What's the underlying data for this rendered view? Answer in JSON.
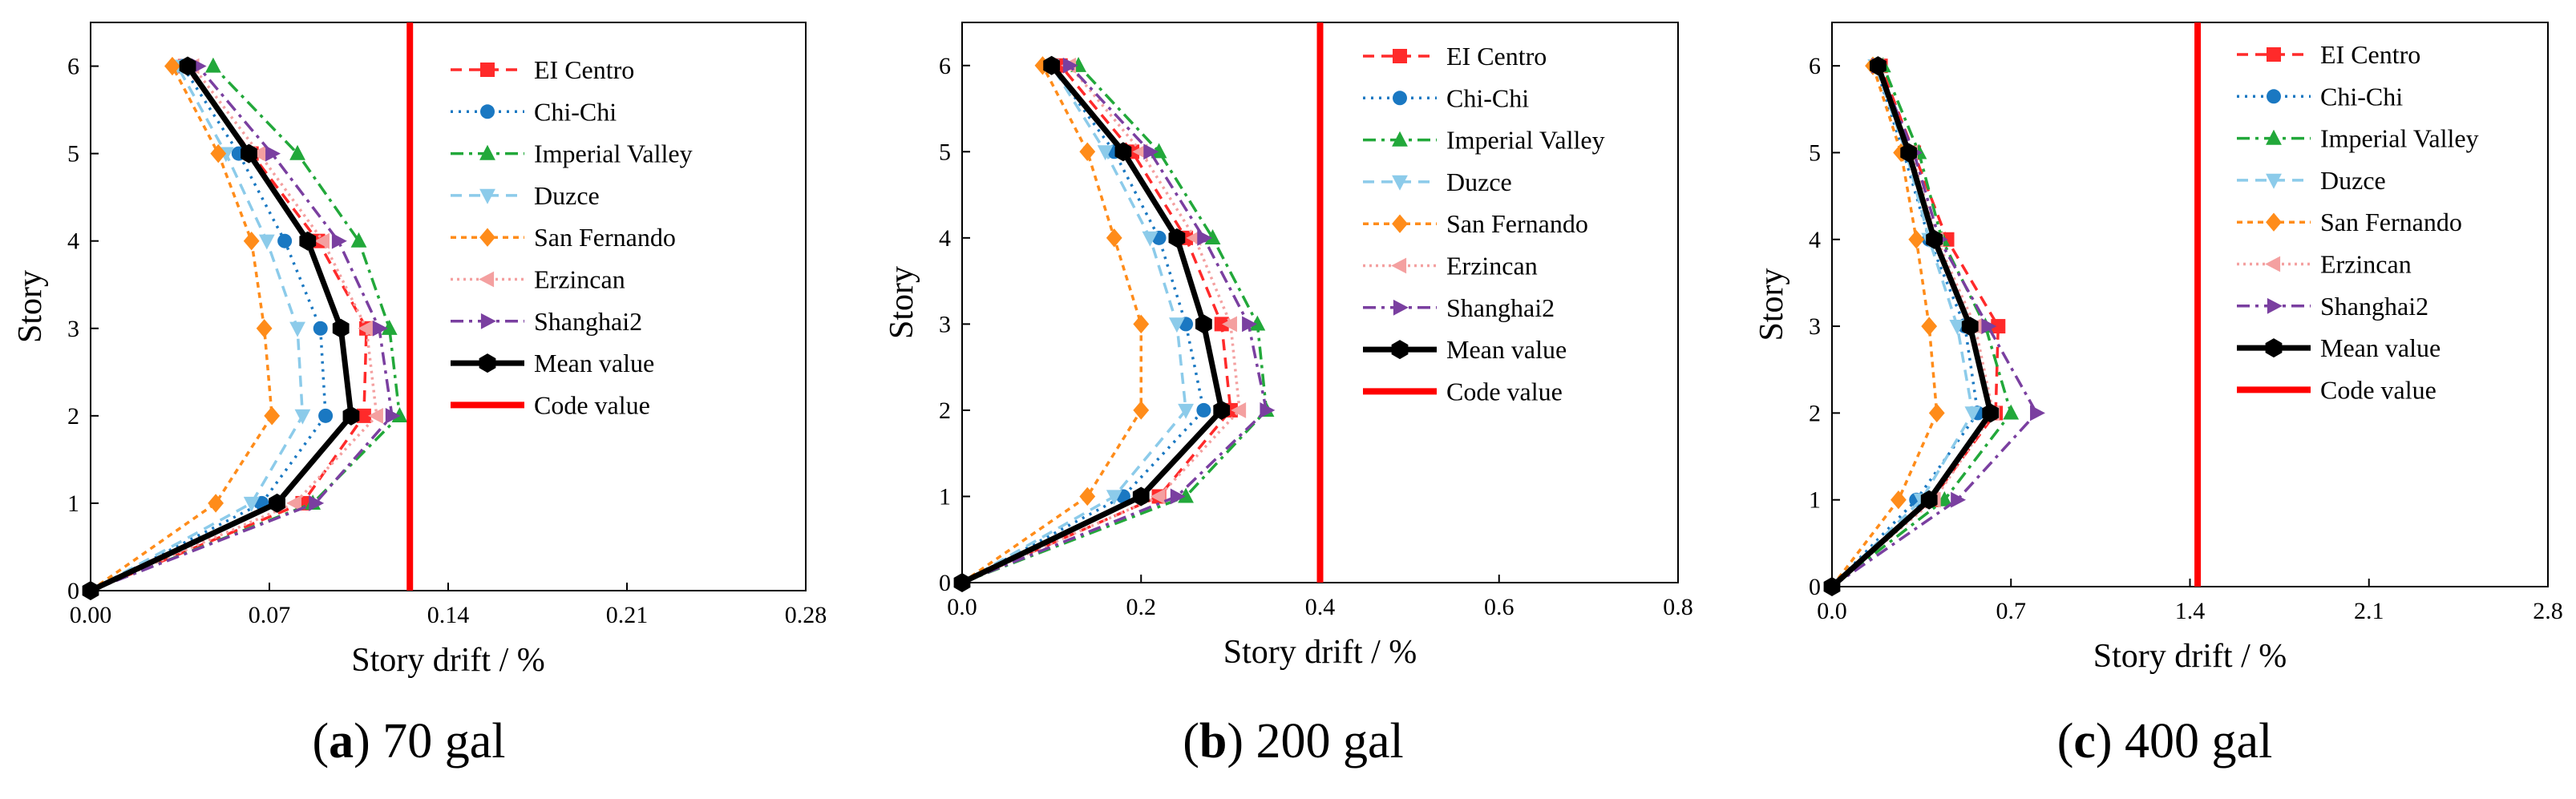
{
  "chart_data": [
    {
      "type": "line",
      "title_letter": "a",
      "title_rest": " 70 gal",
      "xlabel": "Story drift / %",
      "ylabel": "Story",
      "xlim": [
        0,
        0.28
      ],
      "ylim": [
        0,
        6.5
      ],
      "xticks": [
        "0.00",
        "0.07",
        "0.14",
        "0.21",
        "0.28"
      ],
      "yticks": [
        "0",
        "1",
        "2",
        "3",
        "4",
        "5",
        "6"
      ],
      "y": [
        0,
        1,
        2,
        3,
        4,
        5,
        6
      ],
      "series": [
        {
          "name": "EI Centro",
          "values": [
            0,
            0.083,
            0.107,
            0.108,
            0.089,
            0.063,
            0.037
          ]
        },
        {
          "name": "Chi-Chi",
          "values": [
            0,
            0.067,
            0.092,
            0.09,
            0.076,
            0.058,
            0.036
          ]
        },
        {
          "name": "Imperial Valley",
          "values": [
            0,
            0.087,
            0.121,
            0.117,
            0.105,
            0.081,
            0.048
          ]
        },
        {
          "name": "Duzce",
          "values": [
            0,
            0.063,
            0.083,
            0.081,
            0.069,
            0.053,
            0.034
          ]
        },
        {
          "name": "San Fernando",
          "values": [
            0,
            0.049,
            0.071,
            0.068,
            0.063,
            0.05,
            0.032
          ]
        },
        {
          "name": "Erzincan",
          "values": [
            0,
            0.08,
            0.112,
            0.108,
            0.091,
            0.066,
            0.04
          ]
        },
        {
          "name": "Shanghai2",
          "values": [
            0,
            0.088,
            0.118,
            0.113,
            0.097,
            0.071,
            0.042
          ]
        },
        {
          "name": "Mean value",
          "values": [
            0,
            0.073,
            0.102,
            0.098,
            0.085,
            0.062,
            0.038
          ]
        }
      ],
      "code_value": {
        "name": "Code value",
        "value": 0.125
      }
    },
    {
      "type": "line",
      "title_letter": "b",
      "title_rest": " 200 gal",
      "xlabel": "Story drift / %",
      "ylabel": "Story",
      "xlim": [
        0,
        0.8
      ],
      "ylim": [
        0,
        6.5
      ],
      "xticks": [
        "0.0",
        "0.2",
        "0.4",
        "0.6",
        "0.8"
      ],
      "yticks": [
        "0",
        "1",
        "2",
        "3",
        "4",
        "5",
        "6"
      ],
      "y": [
        0,
        1,
        2,
        3,
        4,
        5,
        6
      ],
      "series": [
        {
          "name": "EI Centro",
          "values": [
            0,
            0.22,
            0.3,
            0.29,
            0.25,
            0.19,
            0.11
          ]
        },
        {
          "name": "Chi-Chi",
          "values": [
            0,
            0.18,
            0.27,
            0.25,
            0.22,
            0.17,
            0.1
          ]
        },
        {
          "name": "Imperial Valley",
          "values": [
            0,
            0.25,
            0.34,
            0.33,
            0.28,
            0.22,
            0.13
          ]
        },
        {
          "name": "Duzce",
          "values": [
            0,
            0.17,
            0.25,
            0.24,
            0.21,
            0.16,
            0.1
          ]
        },
        {
          "name": "San Fernando",
          "values": [
            0,
            0.14,
            0.2,
            0.2,
            0.17,
            0.14,
            0.09
          ]
        },
        {
          "name": "Erzincan",
          "values": [
            0,
            0.22,
            0.31,
            0.3,
            0.26,
            0.2,
            0.12
          ]
        },
        {
          "name": "Shanghai2",
          "values": [
            0,
            0.24,
            0.34,
            0.32,
            0.27,
            0.21,
            0.12
          ]
        },
        {
          "name": "Mean value",
          "values": [
            0,
            0.2,
            0.29,
            0.27,
            0.24,
            0.18,
            0.1
          ]
        }
      ],
      "code_value": {
        "name": "Code value",
        "value": 0.4
      }
    },
    {
      "type": "line",
      "title_letter": "c",
      "title_rest": " 400 gal",
      "xlabel": "Story drift / %",
      "ylabel": "Story",
      "xlim": [
        0,
        2.8
      ],
      "ylim": [
        0,
        6.5
      ],
      "xticks": [
        "0.0",
        "0.7",
        "1.4",
        "2.1",
        "2.8"
      ],
      "yticks": [
        "0",
        "1",
        "2",
        "3",
        "4",
        "5",
        "6"
      ],
      "y": [
        0,
        1,
        2,
        3,
        4,
        5,
        6
      ],
      "series": [
        {
          "name": "EI Centro",
          "values": [
            0,
            0.39,
            0.64,
            0.65,
            0.45,
            0.32,
            0.19
          ]
        },
        {
          "name": "Chi-Chi",
          "values": [
            0,
            0.33,
            0.57,
            0.52,
            0.38,
            0.28,
            0.17
          ]
        },
        {
          "name": "Imperial Valley",
          "values": [
            0,
            0.44,
            0.7,
            0.6,
            0.43,
            0.34,
            0.2
          ]
        },
        {
          "name": "Duzce",
          "values": [
            0,
            0.35,
            0.55,
            0.49,
            0.38,
            0.29,
            0.17
          ]
        },
        {
          "name": "San Fernando",
          "values": [
            0,
            0.26,
            0.41,
            0.38,
            0.33,
            0.27,
            0.16
          ]
        },
        {
          "name": "Erzincan",
          "values": [
            0,
            0.4,
            0.63,
            0.56,
            0.41,
            0.31,
            0.18
          ]
        },
        {
          "name": "Shanghai2",
          "values": [
            0,
            0.49,
            0.8,
            0.61,
            0.42,
            0.32,
            0.18
          ]
        },
        {
          "name": "Mean value",
          "values": [
            0,
            0.38,
            0.62,
            0.54,
            0.4,
            0.3,
            0.18
          ]
        }
      ],
      "code_value": {
        "name": "Code value",
        "value": 1.43
      }
    }
  ],
  "styles": {
    "EI Centro": {
      "color": "#ff2a2a",
      "dash": "14 9",
      "marker": "square"
    },
    "Chi-Chi": {
      "color": "#1a78c2",
      "dash": "3 7",
      "marker": "circle"
    },
    "Imperial Valley": {
      "color": "#22a83a",
      "dash": "16 7 4 7",
      "marker": "triangle-up"
    },
    "Duzce": {
      "color": "#8ccbea",
      "dash": "14 9",
      "marker": "triangle-down"
    },
    "San Fernando": {
      "color": "#ff8c1a",
      "dash": "7 6",
      "marker": "diamond"
    },
    "Erzincan": {
      "color": "#f4a0a0",
      "dash": "3 5",
      "marker": "triangle-left"
    },
    "Shanghai2": {
      "color": "#7a3fa0",
      "dash": "16 7 4 7",
      "marker": "triangle-right"
    },
    "Mean value": {
      "color": "#000000",
      "dash": "",
      "marker": "hexagon"
    },
    "Code value": {
      "color": "#ff0000"
    }
  }
}
